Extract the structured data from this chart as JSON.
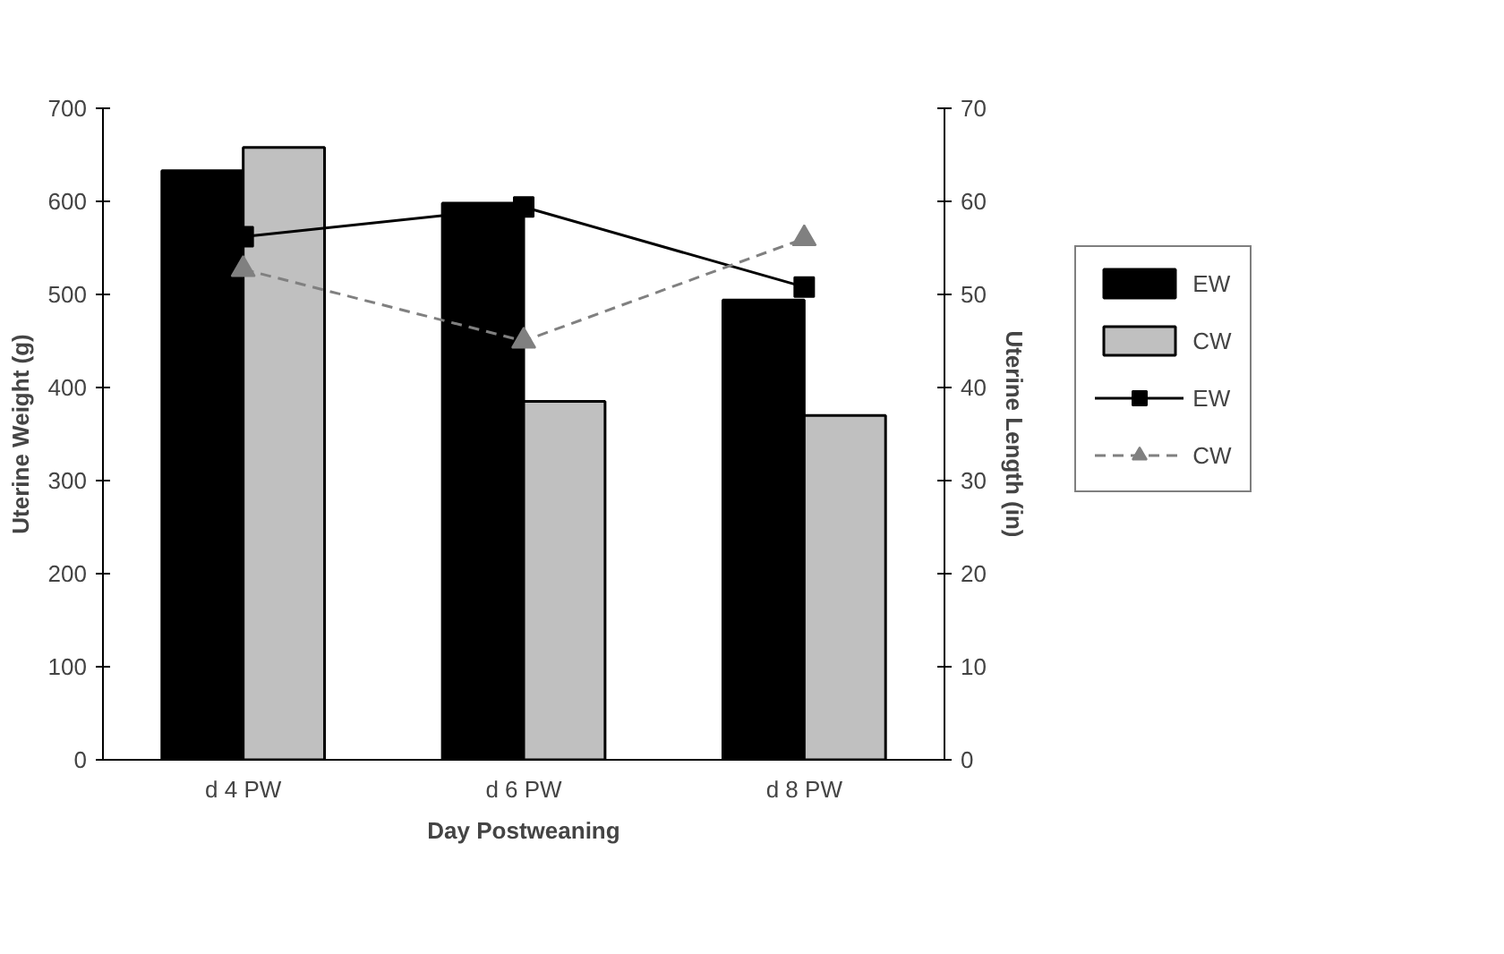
{
  "chart_data": {
    "type": "bar",
    "xlabel": "Day Postweaning",
    "ylabel": "Uterine Weight (g)",
    "y2label": "Uterine Length (in)",
    "categories": [
      "d 4 PW",
      "d 6 PW",
      "d 8 PW"
    ],
    "series": [
      {
        "name": "EW",
        "color": "#000000",
        "values": [
          633,
          598,
          494
        ]
      },
      {
        "name": "CW",
        "color": "#c0c0c0",
        "values": [
          658,
          385,
          370
        ]
      },
      {
        "name": "EW",
        "type": "line",
        "axis": "y2",
        "color": "#000000",
        "marker": "square",
        "line_style": "solid",
        "values": [
          56.2,
          59.4,
          50.8
        ]
      },
      {
        "name": "CW",
        "type": "line",
        "axis": "y2",
        "color": "#808080",
        "marker": "triangle",
        "line_style": "dashed",
        "values": [
          52.7,
          45,
          56
        ]
      }
    ],
    "ylim": [
      0,
      700
    ],
    "yticks": [
      0,
      100,
      200,
      300,
      400,
      500,
      600,
      700
    ],
    "y2lim": [
      0,
      70
    ],
    "y2ticks": [
      0,
      10,
      20,
      30,
      40,
      50,
      60,
      70
    ],
    "grid": false,
    "legend": "right"
  }
}
